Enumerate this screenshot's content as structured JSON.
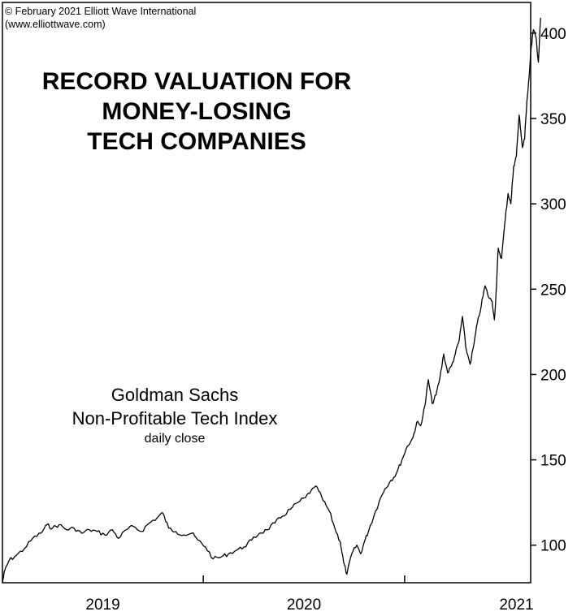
{
  "copyright": {
    "line1": "© February 2021 Elliott Wave International",
    "line2": "(www.elliottwave.com)"
  },
  "title_lines": [
    "RECORD VALUATION FOR",
    "MONEY-LOSING",
    "TECH COMPANIES"
  ],
  "series_label": {
    "line1": "Goldman Sachs",
    "line2": "Non-Profitable Tech Index",
    "line3": "daily close"
  },
  "chart_data": {
    "type": "line",
    "title": "RECORD VALUATION FOR MONEY-LOSING TECH COMPANIES",
    "xlabel": "",
    "ylabel": "",
    "xlim": [
      "2018-07-01",
      "2021-02-15"
    ],
    "ylim": [
      78,
      418
    ],
    "y_ticks": [
      100,
      150,
      200,
      250,
      300,
      350,
      400
    ],
    "x_tick_labels": [
      "2019",
      "2020",
      "2021"
    ],
    "x_major_ticks": [
      "2019-07-01",
      "2020-07-01"
    ],
    "grid": false,
    "series": [
      {
        "name": "Goldman Sachs Non-Profitable Tech Index",
        "points": [
          [
            "2018-07-01",
            78
          ],
          [
            "2018-07-05",
            85
          ],
          [
            "2018-07-13",
            91
          ],
          [
            "2018-07-26",
            94
          ],
          [
            "2018-08-10",
            98
          ],
          [
            "2018-08-25",
            104
          ],
          [
            "2018-09-09",
            107
          ],
          [
            "2018-09-20",
            112
          ],
          [
            "2018-09-30",
            110
          ],
          [
            "2018-10-12",
            112
          ],
          [
            "2018-10-26",
            109
          ],
          [
            "2018-11-08",
            110
          ],
          [
            "2018-11-22",
            107
          ],
          [
            "2018-12-06",
            109
          ],
          [
            "2018-12-20",
            108
          ],
          [
            "2019-01-03",
            106
          ],
          [
            "2019-01-17",
            109
          ],
          [
            "2019-01-28",
            104
          ],
          [
            "2019-02-11",
            109
          ],
          [
            "2019-02-24",
            111
          ],
          [
            "2019-03-10",
            108
          ],
          [
            "2019-03-25",
            113
          ],
          [
            "2019-04-08",
            116
          ],
          [
            "2019-04-18",
            119
          ],
          [
            "2019-04-29",
            110
          ],
          [
            "2019-05-12",
            108
          ],
          [
            "2019-05-27",
            106
          ],
          [
            "2019-06-10",
            107
          ],
          [
            "2019-06-21",
            103
          ],
          [
            "2019-07-05",
            99
          ],
          [
            "2019-07-19",
            92
          ],
          [
            "2019-08-02",
            93
          ],
          [
            "2019-08-16",
            95
          ],
          [
            "2019-08-30",
            97
          ],
          [
            "2019-09-13",
            99
          ],
          [
            "2019-09-27",
            103
          ],
          [
            "2019-10-11",
            107
          ],
          [
            "2019-10-25",
            109
          ],
          [
            "2019-11-08",
            113
          ],
          [
            "2019-11-22",
            117
          ],
          [
            "2019-12-06",
            121
          ],
          [
            "2019-12-20",
            125
          ],
          [
            "2020-01-03",
            128
          ],
          [
            "2020-01-13",
            132
          ],
          [
            "2020-01-24",
            134
          ],
          [
            "2020-02-04",
            126
          ],
          [
            "2020-02-15",
            120
          ],
          [
            "2020-02-25",
            110
          ],
          [
            "2020-03-06",
            102
          ],
          [
            "2020-03-12",
            90
          ],
          [
            "2020-03-18",
            83
          ],
          [
            "2020-03-27",
            95
          ],
          [
            "2020-04-05",
            100
          ],
          [
            "2020-04-12",
            95
          ],
          [
            "2020-04-20",
            103
          ],
          [
            "2020-04-28",
            110
          ],
          [
            "2020-05-07",
            118
          ],
          [
            "2020-05-16",
            126
          ],
          [
            "2020-05-26",
            133
          ],
          [
            "2020-06-06",
            138
          ],
          [
            "2020-06-16",
            142
          ],
          [
            "2020-06-26",
            150
          ],
          [
            "2020-07-06",
            158
          ],
          [
            "2020-07-16",
            163
          ],
          [
            "2020-07-23",
            172
          ],
          [
            "2020-07-30",
            170
          ],
          [
            "2020-08-07",
            182
          ],
          [
            "2020-08-13",
            197
          ],
          [
            "2020-08-20",
            183
          ],
          [
            "2020-08-27",
            188
          ],
          [
            "2020-09-03",
            198
          ],
          [
            "2020-09-10",
            212
          ],
          [
            "2020-09-17",
            201
          ],
          [
            "2020-09-24",
            205
          ],
          [
            "2020-10-01",
            212
          ],
          [
            "2020-10-08",
            220
          ],
          [
            "2020-10-14",
            234
          ],
          [
            "2020-10-20",
            216
          ],
          [
            "2020-10-28",
            206
          ],
          [
            "2020-11-04",
            218
          ],
          [
            "2020-11-10",
            230
          ],
          [
            "2020-11-17",
            240
          ],
          [
            "2020-11-24",
            252
          ],
          [
            "2020-12-01",
            245
          ],
          [
            "2020-12-07",
            243
          ],
          [
            "2020-12-11",
            232
          ],
          [
            "2020-12-15",
            252
          ],
          [
            "2020-12-18",
            274
          ],
          [
            "2020-12-24",
            268
          ],
          [
            "2020-12-31",
            292
          ],
          [
            "2021-01-05",
            306
          ],
          [
            "2021-01-10",
            300
          ],
          [
            "2021-01-15",
            322
          ],
          [
            "2021-01-20",
            328
          ],
          [
            "2021-01-25",
            352
          ],
          [
            "2021-01-28",
            343
          ],
          [
            "2021-01-31",
            333
          ],
          [
            "2021-02-04",
            338
          ],
          [
            "2021-02-08",
            360
          ],
          [
            "2021-02-12",
            374
          ],
          [
            "2021-02-16",
            392
          ],
          [
            "2021-02-20",
            402
          ],
          [
            "2021-02-25",
            397
          ],
          [
            "2021-03-01",
            383
          ],
          [
            "2021-03-05",
            409
          ]
        ]
      }
    ]
  }
}
